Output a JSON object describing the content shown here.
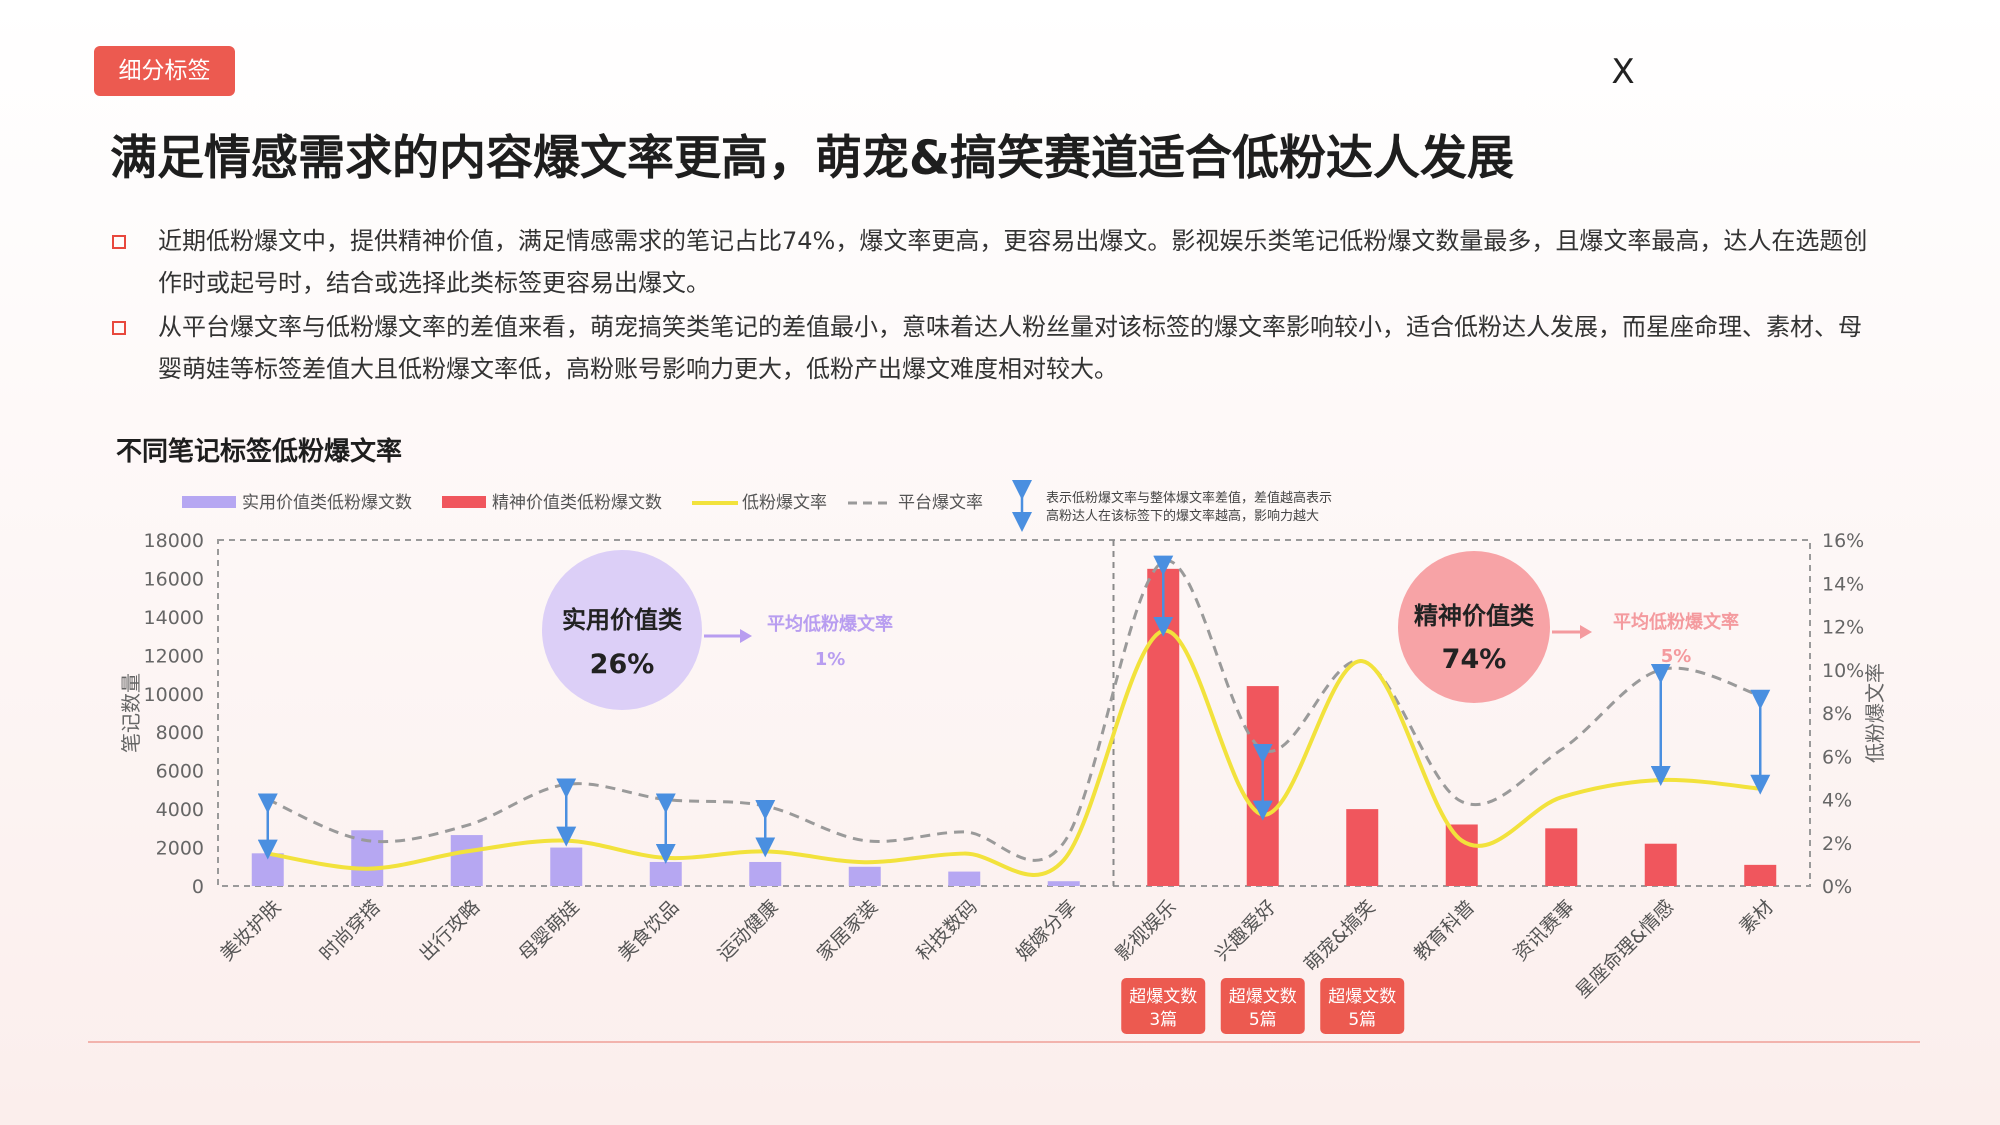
{
  "tag": "细分标签",
  "close_label": "X",
  "headline": "满足情感需求的内容爆文率更高，萌宠&搞笑赛道适合低粉达人发展",
  "bullets": [
    "近期低粉爆文中，提供精神价值，满足情感需求的笔记占比74%，爆文率更高，更容易出爆文。影视娱乐类笔记低粉爆文数量最多，且爆文率最高，达人在选题创作时或起号时，结合或选择此类标签更容易出爆文。",
    "从平台爆文率与低粉爆文率的差值来看，萌宠搞笑类笔记的差值最小，意味着达人粉丝量对该标签的爆文率影响较小，适合低粉达人发展，而星座命理、素材、母婴萌娃等标签差值大且低粉爆文率低，高粉账号影响力更大，低粉产出爆文难度相对较大。"
  ],
  "colors": {
    "utility": "#b6a7f2",
    "spirit": "#f0565d",
    "low_rate": "#f2e23c",
    "platform_rate": "#9a9a9a",
    "diff_arrow": "#4a8fe0",
    "accent": "#ec5a50"
  },
  "chart_data": {
    "type": "bar",
    "title": "不同笔记标签低粉爆文率",
    "ylabel": "笔记数量",
    "y2label": "低粉爆文率",
    "ylim": [
      0,
      18000
    ],
    "yticks": [
      "0",
      "2000",
      "4000",
      "6000",
      "8000",
      "10000",
      "12000",
      "14000",
      "16000",
      "18000"
    ],
    "y2lim": [
      0,
      16
    ],
    "y2ticks": [
      "0%",
      "2%",
      "4%",
      "6%",
      "8%",
      "10%",
      "12%",
      "14%",
      "16%"
    ],
    "categories": [
      "美妆护肤",
      "时尚穿搭",
      "出行攻略",
      "母婴萌娃",
      "美食饮品",
      "运动健康",
      "家居家装",
      "科技数码",
      "婚嫁分享",
      "影视娱乐",
      "兴趣爱好",
      "萌宠&搞笑",
      "教育科普",
      "资讯赛事",
      "星座命理&情感",
      "素材"
    ],
    "legend": {
      "utility": "实用价值类低粉爆文数",
      "spirit": "精神价值类低粉爆文数",
      "low_rate": "低粉爆文率",
      "platform_rate": "平台爆文率",
      "diff_note_line1": "表示低粉爆文率与整体爆文率差值，差值越高表示",
      "diff_note_line2": "高粉达人在该标签下的爆文率越高，影响力越大"
    },
    "series": [
      {
        "name": "实用价值类低粉爆文数",
        "values": [
          1700,
          2900,
          2650,
          2000,
          1250,
          1250,
          1000,
          750,
          250,
          null,
          null,
          null,
          null,
          null,
          null,
          null
        ]
      },
      {
        "name": "精神价值类低粉爆文数",
        "values": [
          null,
          null,
          null,
          null,
          null,
          null,
          null,
          null,
          null,
          16500,
          10400,
          4000,
          3200,
          3000,
          2200,
          1100
        ]
      },
      {
        "name": "低粉爆文率",
        "values": [
          1.5,
          0.8,
          1.6,
          2.1,
          1.3,
          1.6,
          1.1,
          1.5,
          1.2,
          11.8,
          3.3,
          10.4,
          2.1,
          4.1,
          4.9,
          4.5
        ]
      },
      {
        "name": "平台爆文率",
        "values": [
          4.0,
          2.1,
          2.8,
          4.7,
          4.0,
          3.7,
          2.1,
          2.5,
          2.0,
          15.0,
          6.3,
          10.4,
          3.9,
          6.3,
          10.0,
          8.8
        ]
      }
    ],
    "diff_arrow_categories": [
      "美妆护肤",
      "母婴萌娃",
      "美食饮品",
      "运动健康",
      "影视娱乐",
      "兴趣爱好",
      "星座命理&情感",
      "素材"
    ],
    "groups": [
      {
        "label": "实用价值类",
        "share": "26%",
        "avg_label": "平均低粉爆文率",
        "avg_value": "1%"
      },
      {
        "label": "精神价值类",
        "share": "74%",
        "avg_label": "平均低粉爆文率",
        "avg_value": "5%"
      }
    ],
    "callouts": [
      {
        "category": "影视娱乐",
        "line1": "超爆文数",
        "line2": "3篇"
      },
      {
        "category": "兴趣爱好",
        "line1": "超爆文数",
        "line2": "5篇"
      },
      {
        "category": "萌宠&搞笑",
        "line1": "超爆文数",
        "line2": "5篇"
      }
    ]
  }
}
